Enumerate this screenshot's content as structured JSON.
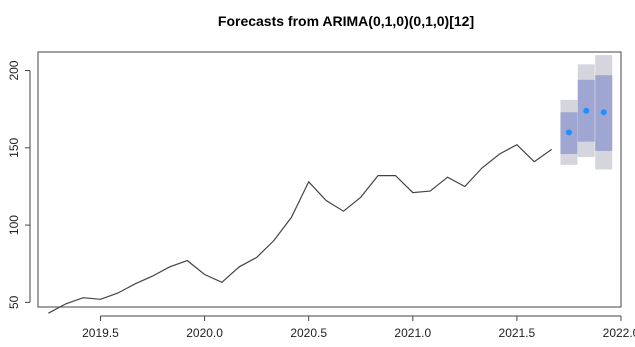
{
  "chart_data": {
    "type": "line",
    "title": "Forecasts from ARIMA(0,1,0)(0,1,0)[12]",
    "xlabel": "",
    "ylabel": "",
    "xlim": [
      19.2,
      22.0
    ],
    "ylim": [
      47,
      212
    ],
    "x_ticks": [
      19.5,
      20.0,
      20.5,
      21.0,
      21.5,
      22.0
    ],
    "x_tick_labels": [
      "2019.5",
      "2020.0",
      "2020.5",
      "2021.0",
      "2021.5",
      "2022.0"
    ],
    "y_ticks": [
      50,
      100,
      150,
      200
    ],
    "y_tick_labels": [
      "50",
      "100",
      "150",
      "200"
    ],
    "grid": false,
    "series": [
      {
        "x": [
          19.25,
          19.333,
          19.417,
          19.5,
          19.583,
          19.667,
          19.75,
          19.833,
          19.917,
          20.0,
          20.083,
          20.167,
          20.25,
          20.333,
          20.417,
          20.5,
          20.583,
          20.667,
          20.75,
          20.833,
          20.917,
          21.0,
          21.083,
          21.167,
          21.25,
          21.333,
          21.417,
          21.5,
          21.583,
          21.667
        ],
        "values": [
          43,
          49,
          53,
          52,
          56,
          62,
          67,
          73,
          77,
          68,
          63,
          73,
          79,
          90,
          105,
          128,
          116,
          109,
          118,
          132,
          132,
          121,
          122,
          131,
          125,
          137,
          146,
          152,
          141,
          149
        ],
        "color": "#444444"
      }
    ],
    "forecast": {
      "x": [
        21.75,
        21.833,
        21.917
      ],
      "point": [
        160,
        174,
        173
      ],
      "lo80": [
        146,
        154,
        148
      ],
      "hi80": [
        173,
        194,
        197
      ],
      "lo95": [
        139,
        144,
        136
      ],
      "hi95": [
        181,
        204,
        210
      ],
      "point_color": "#1e90ff",
      "band80_color": "#9fa6d2",
      "band95_color": "#d5d5de"
    }
  }
}
